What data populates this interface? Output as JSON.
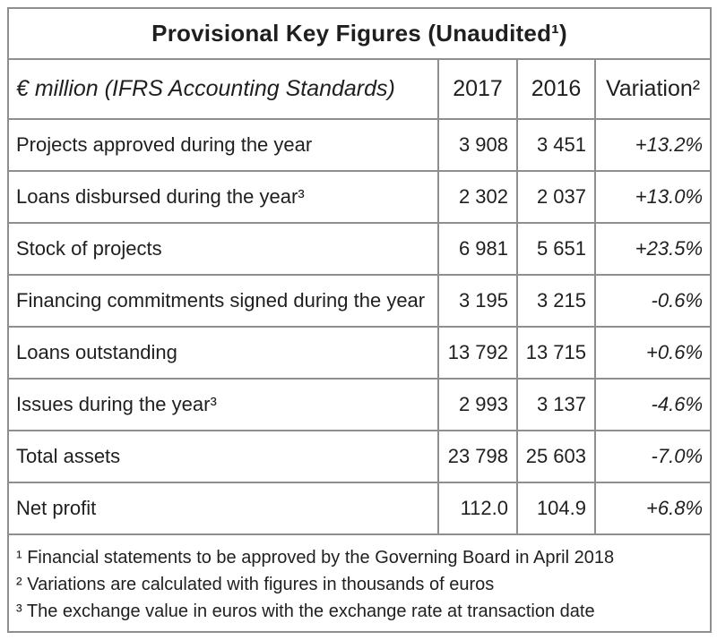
{
  "table": {
    "title": "Provisional Key Figures (Unaudited¹)",
    "columns": [
      "€ million (IFRS Accounting Standards)",
      "2017",
      "2016",
      "Variation²"
    ],
    "rows": [
      {
        "label": "Projects approved during the year",
        "y2017": "3 908",
        "y2016": "3 451",
        "variation": "+13.2%"
      },
      {
        "label": "Loans disbursed during the year³",
        "y2017": "2 302",
        "y2016": "2 037",
        "variation": "+13.0%"
      },
      {
        "label": "Stock of projects",
        "y2017": "6 981",
        "y2016": "5 651",
        "variation": "+23.5%"
      },
      {
        "label": "Financing commitments signed during the year",
        "y2017": "3 195",
        "y2016": "3 215",
        "variation": "-0.6%"
      },
      {
        "label": "Loans outstanding",
        "y2017": "13 792",
        "y2016": "13 715",
        "variation": "+0.6%"
      },
      {
        "label": "Issues during the year³",
        "y2017": "2 993",
        "y2016": "3 137",
        "variation": "-4.6%"
      },
      {
        "label": "Total assets",
        "y2017": "23 798",
        "y2016": "25 603",
        "variation": "-7.0%"
      },
      {
        "label": "Net profit",
        "y2017": "112.0",
        "y2016": "104.9",
        "variation": "+6.8%"
      }
    ],
    "footnotes": [
      "¹ Financial statements to be approved by the Governing Board in April 2018",
      "² Variations are calculated with figures in thousands of euros",
      "³ The exchange value in euros with the exchange rate at transaction date"
    ]
  },
  "colors": {
    "border": "#8f8f8f",
    "text": "#1f1f1f",
    "background": "#ffffff"
  }
}
